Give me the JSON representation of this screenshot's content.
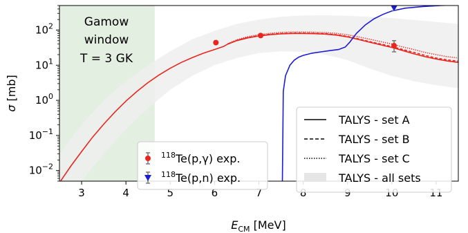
{
  "chart_data": {
    "type": "line",
    "xlabel": {
      "main": "E",
      "sub": "CM",
      "unit": " [MeV]"
    },
    "ylabel": {
      "symbol": "σ",
      "unit": " [mb]"
    },
    "xlim": [
      2.5,
      11.5
    ],
    "ylim": [
      0.005,
      500
    ],
    "yscale": "log",
    "grid": false,
    "x_ticks": [
      3,
      4,
      5,
      6,
      7,
      8,
      9,
      10,
      11
    ],
    "y_ticks": [
      {
        "value": 0.01,
        "base": "10",
        "exp": "−2"
      },
      {
        "value": 0.1,
        "base": "10",
        "exp": "−1"
      },
      {
        "value": 1,
        "base": "10",
        "exp": "0"
      },
      {
        "value": 10,
        "base": "10",
        "exp": "1"
      },
      {
        "value": 100,
        "base": "10",
        "exp": "2"
      }
    ],
    "shaded_region": {
      "x_range": [
        2.5,
        4.65
      ],
      "color": "#e3efe1",
      "label_lines": [
        "Gamow",
        "window",
        "T = 3 GK"
      ]
    },
    "band": {
      "name": "TALYS - all sets",
      "color": "#eeeeee",
      "upper": [
        [
          2.5,
          0.03
        ],
        [
          3.0,
          0.2
        ],
        [
          3.5,
          1.0
        ],
        [
          4.0,
          3.5
        ],
        [
          4.5,
          10
        ],
        [
          5.0,
          25
        ],
        [
          5.5,
          55
        ],
        [
          6.0,
          95
        ],
        [
          6.5,
          150
        ],
        [
          7.0,
          200
        ],
        [
          7.5,
          240
        ],
        [
          8.0,
          260
        ],
        [
          8.5,
          265
        ],
        [
          9.0,
          255
        ],
        [
          9.5,
          240
        ],
        [
          10.0,
          220
        ],
        [
          10.5,
          195
        ],
        [
          11.0,
          170
        ],
        [
          11.5,
          150
        ]
      ],
      "lower": [
        [
          2.5,
          0.005
        ],
        [
          3.0,
          0.005
        ],
        [
          3.5,
          0.03
        ],
        [
          4.0,
          0.15
        ],
        [
          4.5,
          0.6
        ],
        [
          5.0,
          2
        ],
        [
          5.5,
          5
        ],
        [
          6.0,
          10
        ],
        [
          6.5,
          16
        ],
        [
          7.0,
          22
        ],
        [
          7.5,
          25
        ],
        [
          8.0,
          24
        ],
        [
          8.5,
          20
        ],
        [
          9.0,
          14
        ],
        [
          9.5,
          8
        ],
        [
          10.0,
          5
        ],
        [
          10.5,
          3.5
        ],
        [
          11.0,
          2.7
        ],
        [
          11.5,
          2.2
        ]
      ]
    },
    "series": [
      {
        "name": "TALYS - set A",
        "color": "#e8251f",
        "dash": "solid",
        "points": [
          [
            2.5,
            0.0045
          ],
          [
            2.75,
            0.013
          ],
          [
            3.0,
            0.035
          ],
          [
            3.25,
            0.09
          ],
          [
            3.5,
            0.21
          ],
          [
            3.75,
            0.46
          ],
          [
            4.0,
            0.95
          ],
          [
            4.25,
            1.8
          ],
          [
            4.5,
            3.2
          ],
          [
            4.75,
            5.3
          ],
          [
            5.0,
            8.2
          ],
          [
            5.25,
            12.0
          ],
          [
            5.5,
            16.5
          ],
          [
            5.75,
            22
          ],
          [
            6.0,
            28
          ],
          [
            6.2,
            34
          ],
          [
            6.3,
            40
          ],
          [
            6.5,
            50
          ],
          [
            6.75,
            60
          ],
          [
            7.0,
            68
          ],
          [
            7.25,
            74
          ],
          [
            7.5,
            78
          ],
          [
            7.75,
            80
          ],
          [
            8.0,
            80
          ],
          [
            8.25,
            79
          ],
          [
            8.5,
            77
          ],
          [
            8.75,
            72
          ],
          [
            9.0,
            64
          ],
          [
            9.25,
            54
          ],
          [
            9.5,
            45
          ],
          [
            9.75,
            38
          ],
          [
            10.0,
            32
          ],
          [
            10.25,
            26
          ],
          [
            10.5,
            21
          ],
          [
            10.75,
            17.5
          ],
          [
            11.0,
            15
          ],
          [
            11.25,
            13.2
          ],
          [
            11.5,
            12
          ]
        ]
      },
      {
        "name": "TALYS - set B",
        "color": "#e8251f",
        "dash": "dashed",
        "points": [
          [
            6.3,
            40
          ],
          [
            6.5,
            51
          ],
          [
            6.75,
            62
          ],
          [
            7.0,
            70
          ],
          [
            7.25,
            76
          ],
          [
            7.5,
            80
          ],
          [
            7.75,
            82
          ],
          [
            8.0,
            82
          ],
          [
            8.25,
            81
          ],
          [
            8.5,
            79
          ],
          [
            8.75,
            74
          ],
          [
            9.0,
            66
          ],
          [
            9.25,
            56
          ],
          [
            9.5,
            47
          ],
          [
            9.75,
            40
          ],
          [
            10.0,
            34
          ],
          [
            10.25,
            28
          ],
          [
            10.5,
            23
          ],
          [
            10.75,
            19
          ],
          [
            11.0,
            16
          ],
          [
            11.25,
            14.2
          ],
          [
            11.5,
            13
          ]
        ]
      },
      {
        "name": "TALYS - set C",
        "color": "#e8251f",
        "dash": "dotted",
        "points": [
          [
            6.3,
            41
          ],
          [
            6.5,
            53
          ],
          [
            6.75,
            65
          ],
          [
            7.0,
            74
          ],
          [
            7.25,
            81
          ],
          [
            7.5,
            86
          ],
          [
            7.75,
            88
          ],
          [
            8.0,
            88
          ],
          [
            8.25,
            87
          ],
          [
            8.5,
            85
          ],
          [
            8.75,
            81
          ],
          [
            9.0,
            74
          ],
          [
            9.25,
            64
          ],
          [
            9.5,
            55
          ],
          [
            9.75,
            47
          ],
          [
            10.0,
            40
          ],
          [
            10.25,
            33
          ],
          [
            10.5,
            28
          ],
          [
            10.75,
            23
          ],
          [
            11.0,
            20
          ],
          [
            11.25,
            17.5
          ],
          [
            11.5,
            16
          ]
        ]
      },
      {
        "name": "(p,n) TALYS",
        "color": "#1b1bd6",
        "dash": "solid",
        "points": [
          [
            7.53,
            0.005
          ],
          [
            7.55,
            1.8
          ],
          [
            7.6,
            5
          ],
          [
            7.7,
            10
          ],
          [
            7.8,
            14
          ],
          [
            7.9,
            17
          ],
          [
            8.0,
            19
          ],
          [
            8.2,
            22
          ],
          [
            8.4,
            24
          ],
          [
            8.6,
            26
          ],
          [
            8.8,
            28
          ],
          [
            8.95,
            33
          ],
          [
            9.05,
            45
          ],
          [
            9.2,
            80
          ],
          [
            9.4,
            140
          ],
          [
            9.6,
            210
          ],
          [
            9.8,
            280
          ],
          [
            10.0,
            350
          ],
          [
            10.3,
            420
          ],
          [
            10.7,
            470
          ],
          [
            11.1,
            500
          ],
          [
            11.5,
            520
          ]
        ]
      }
    ],
    "experiments": [
      {
        "name": "(p,γ) exp.",
        "marker_color": "#e8251f",
        "marker": "circle",
        "errbar_color": "#777777",
        "points": [
          {
            "x": 6.03,
            "y": 44,
            "err": [
              40,
              49
            ]
          },
          {
            "x": 7.04,
            "y": 70,
            "err": [
              64,
              77
            ]
          },
          {
            "x": 10.05,
            "y": 36,
            "err": [
              24,
              50
            ]
          }
        ]
      },
      {
        "name": "(p,n) exp.",
        "marker_color": "#1b1bd6",
        "marker": "triangle-down",
        "errbar_color": "#777777",
        "points": [
          {
            "x": 10.05,
            "y": 420,
            "err": [
              360,
              480
            ]
          }
        ]
      }
    ],
    "legend_left": {
      "placement": "lower-center",
      "entries": [
        {
          "mass": "118",
          "label": "Te(p,γ) exp.",
          "marker_color": "#e8251f",
          "marker": "circle"
        },
        {
          "mass": "118",
          "label": "Te(p,n) exp.",
          "marker_color": "#1b1bd6",
          "marker": "triangle-down"
        }
      ]
    },
    "legend_right": {
      "placement": "lower-right",
      "entries": [
        {
          "label": "TALYS - set A",
          "style": "solid"
        },
        {
          "label": "TALYS - set B",
          "style": "dashed"
        },
        {
          "label": "TALYS - set C",
          "style": "dotted"
        },
        {
          "label": "TALYS - all sets",
          "style": "band"
        }
      ]
    }
  }
}
